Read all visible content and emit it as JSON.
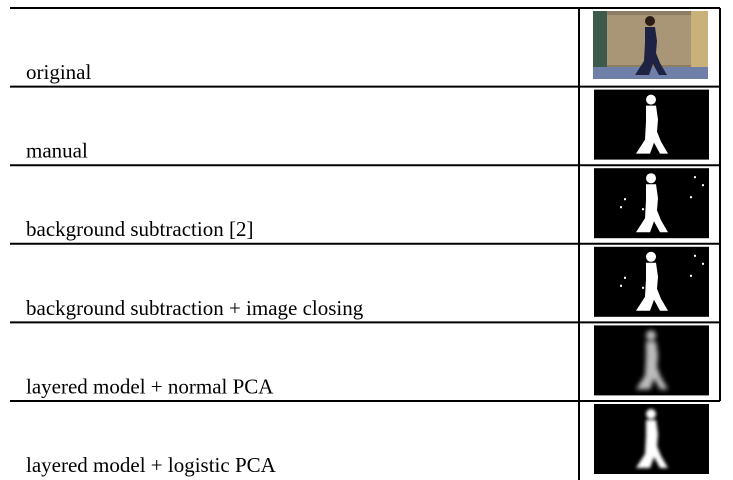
{
  "table": {
    "rows": [
      {
        "label": "original"
      },
      {
        "label": "manual"
      },
      {
        "label": "background subtraction [2]"
      },
      {
        "label": "background subtraction + image closing"
      },
      {
        "label": "layered model + normal PCA"
      },
      {
        "label": "layered model + logistic PCA"
      }
    ]
  }
}
